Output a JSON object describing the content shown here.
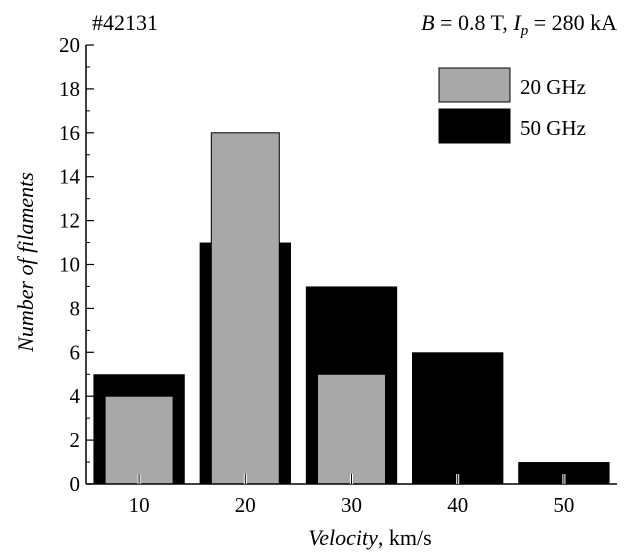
{
  "header": {
    "shot": "#42131",
    "b_symbol": "B",
    "b_eq": " = 0.8 T, ",
    "ip_symbol": "I",
    "ip_sub": "p",
    "ip_eq": " = 280 kA"
  },
  "colors": {
    "s20": "#a8a8a8",
    "s50": "#000000",
    "axis": "#000000"
  },
  "chart_data": {
    "type": "bar",
    "title": "",
    "xlabel_italic": "Velocity",
    "xlabel_unit": ", km/s",
    "ylabel": "Number of filaments",
    "categories": [
      10,
      20,
      30,
      40,
      50
    ],
    "xlim": [
      5,
      55
    ],
    "ylim": [
      0,
      20
    ],
    "yticks": [
      0,
      2,
      4,
      6,
      8,
      10,
      12,
      14,
      16,
      18,
      20
    ],
    "xticks": [
      10,
      20,
      30,
      40,
      50
    ],
    "grid": false,
    "legend_position": "top-right",
    "series": [
      {
        "name": "50 GHz",
        "color": "#000000",
        "values": [
          5,
          11,
          9,
          6,
          1
        ]
      },
      {
        "name": "20 GHz",
        "color": "#a8a8a8",
        "values": [
          4,
          16,
          5,
          0,
          0
        ]
      }
    ]
  }
}
